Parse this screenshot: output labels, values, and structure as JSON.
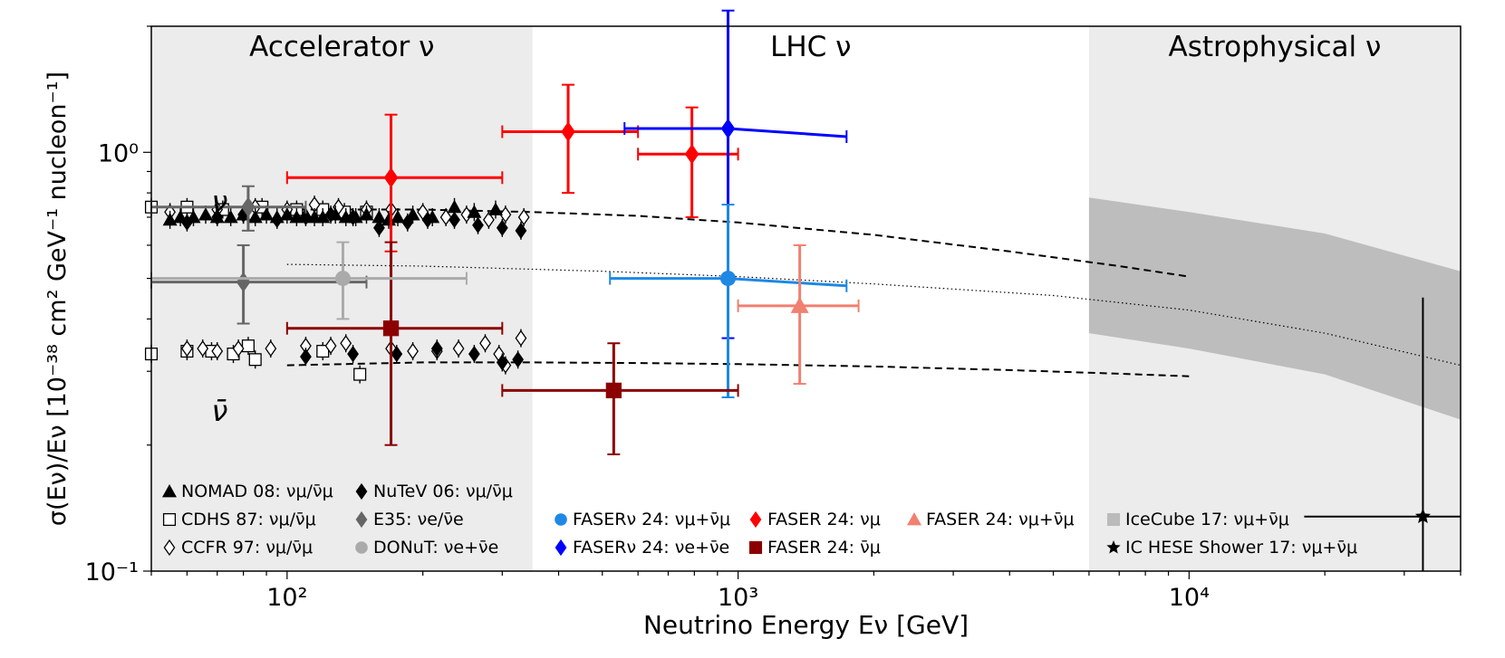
{
  "chart_data": {
    "type": "scatter",
    "title": "",
    "xlabel": "Neutrino Energy Eν [GeV]",
    "ylabel": "σ(Eν)/Eν [10⁻³⁸ cm² GeV⁻¹ nucleon⁻¹]",
    "xscale": "log",
    "yscale": "log",
    "xlim": [
      50,
      40000
    ],
    "ylim": [
      0.1,
      2.0
    ],
    "x_ticks": [
      {
        "value": 100,
        "label": "10²"
      },
      {
        "value": 1000,
        "label": "10³"
      },
      {
        "value": 10000,
        "label": "10⁴"
      }
    ],
    "y_ticks": [
      {
        "value": 0.1,
        "label": "10⁻¹"
      },
      {
        "value": 1.0,
        "label": "10⁰"
      }
    ],
    "regions": [
      {
        "name": "accelerator",
        "label": "Accelerator ν",
        "x_from": 50,
        "x_to": 350,
        "shaded": true
      },
      {
        "name": "lhc",
        "label": "LHC ν",
        "x_from": 350,
        "x_to": 6000,
        "shaded": false
      },
      {
        "name": "astro",
        "label": "Astrophysical ν",
        "x_from": 6000,
        "x_to": 40000,
        "shaded": true
      }
    ],
    "annotations": [
      {
        "name": "nu-label",
        "text": "ν",
        "x": 68,
        "y": 0.76
      },
      {
        "name": "nubar-label",
        "text": "ν̄",
        "x": 68,
        "y": 0.24
      }
    ],
    "curves": [
      {
        "name": "nu-dashed",
        "style": "dashed",
        "x": [
          100,
          200,
          350,
          600,
          1000,
          2000,
          4000,
          7000,
          10000
        ],
        "y": [
          0.73,
          0.73,
          0.72,
          0.705,
          0.68,
          0.635,
          0.58,
          0.535,
          0.505
        ]
      },
      {
        "name": "nubar-dashed",
        "style": "dashed",
        "x": [
          100,
          200,
          350,
          600,
          1000,
          2000,
          4000,
          7000,
          10000
        ],
        "y": [
          0.31,
          0.315,
          0.315,
          0.314,
          0.312,
          0.308,
          0.302,
          0.296,
          0.292
        ]
      },
      {
        "name": "average-dotted",
        "style": "dotted",
        "x": [
          100,
          200,
          500,
          1000,
          2000,
          5000,
          10000,
          20000,
          40000
        ],
        "y": [
          0.54,
          0.535,
          0.52,
          0.505,
          0.485,
          0.455,
          0.42,
          0.37,
          0.31
        ]
      }
    ],
    "band": {
      "name": "icecube-band",
      "x": [
        6000,
        10000,
        20000,
        40000
      ],
      "y_low": [
        0.37,
        0.34,
        0.295,
        0.23
      ],
      "y_high": [
        0.78,
        0.72,
        0.64,
        0.52
      ]
    },
    "nomad_nu": {
      "x": [
        55,
        58,
        62,
        66,
        70,
        75,
        80,
        85,
        90,
        95,
        100,
        105,
        110,
        115,
        120,
        128,
        135,
        142,
        150,
        160,
        168,
        176,
        190,
        210,
        235,
        260,
        290
      ],
      "y": [
        0.69,
        0.7,
        0.7,
        0.71,
        0.7,
        0.7,
        0.71,
        0.7,
        0.71,
        0.7,
        0.71,
        0.7,
        0.71,
        0.7,
        0.7,
        0.71,
        0.7,
        0.7,
        0.71,
        0.7,
        0.69,
        0.7,
        0.71,
        0.7,
        0.74,
        0.72,
        0.73
      ]
    },
    "nutev_nu": {
      "x": [
        60,
        70,
        80,
        95,
        110,
        125,
        140,
        160,
        185,
        205,
        235,
        265,
        300,
        330
      ],
      "y": [
        0.68,
        0.7,
        0.71,
        0.69,
        0.7,
        0.71,
        0.7,
        0.66,
        0.68,
        0.69,
        0.69,
        0.67,
        0.66,
        0.65
      ]
    },
    "cdhs_nu": {
      "x": [
        50,
        60,
        72,
        88,
        105,
        120,
        134,
        150
      ],
      "y": [
        0.74,
        0.74,
        0.73,
        0.74,
        0.73,
        0.73,
        0.72,
        0.72
      ]
    },
    "ccfr_nu": {
      "x": [
        55,
        70,
        85,
        100,
        115,
        130,
        150,
        170,
        200,
        225,
        250,
        280,
        305,
        335
      ],
      "y": [
        0.72,
        0.73,
        0.74,
        0.73,
        0.75,
        0.74,
        0.73,
        0.73,
        0.72,
        0.7,
        0.71,
        0.69,
        0.71,
        0.7
      ]
    },
    "nomad_nubar": {
      "x": [],
      "y": []
    },
    "nutev_nubar": {
      "x": [
        110,
        140,
        175,
        215,
        260,
        300,
        325
      ],
      "y": [
        0.325,
        0.33,
        0.33,
        0.34,
        0.33,
        0.315,
        0.32
      ]
    },
    "cdhs_nubar": {
      "x": [
        50,
        60,
        68,
        76,
        82,
        85,
        120,
        145
      ],
      "y": [
        0.33,
        0.335,
        0.335,
        0.33,
        0.345,
        0.32,
        0.335,
        0.295
      ]
    },
    "ccfr_nubar": {
      "x": [
        60,
        65,
        70,
        78,
        92,
        110,
        125,
        135,
        170,
        190,
        215,
        240,
        275,
        295,
        305,
        330
      ],
      "y": [
        0.34,
        0.34,
        0.335,
        0.34,
        0.34,
        0.345,
        0.345,
        0.35,
        0.34,
        0.335,
        0.335,
        0.34,
        0.35,
        0.33,
        0.31,
        0.36
      ]
    },
    "errorbar_points": [
      {
        "name": "faser24-numu-1",
        "marker": "diamond",
        "color": "#ff0000",
        "x": 170,
        "y": 0.87,
        "xlo": 100,
        "xhi": 300,
        "ylo": 0.58,
        "yhi": 1.23
      },
      {
        "name": "faser24-numu-2",
        "marker": "diamond",
        "color": "#ff0000",
        "x": 420,
        "y": 1.12,
        "xlo": 300,
        "xhi": 600,
        "ylo": 0.8,
        "yhi": 1.45
      },
      {
        "name": "faser24-numu-3",
        "marker": "diamond",
        "color": "#ff0000",
        "x": 790,
        "y": 0.99,
        "xlo": 600,
        "xhi": 1000,
        "ylo": 0.7,
        "yhi": 1.28
      },
      {
        "name": "fasernu24-nue",
        "marker": "diamond",
        "color": "#0000ff",
        "x": 950,
        "y": 1.14,
        "xlo": 560,
        "xhi": 1740,
        "ylo": 0.36,
        "yhi": 2.18,
        "x_right_y": 1.09
      },
      {
        "name": "fasernu24-numu",
        "marker": "circle",
        "color": "#1e88e5",
        "x": 950,
        "y": 0.5,
        "xlo": 520,
        "xhi": 1740,
        "ylo": 0.26,
        "yhi": 0.75,
        "x_right_y": 0.48
      },
      {
        "name": "faser24-numu-sum",
        "marker": "triangle",
        "color": "#f08070",
        "x": 1370,
        "y": 0.43,
        "xlo": 1000,
        "xhi": 1850,
        "ylo": 0.28,
        "yhi": 0.6
      },
      {
        "name": "faser24-numubar-1",
        "marker": "square",
        "color": "#8b0000",
        "x": 170,
        "y": 0.38,
        "xlo": 100,
        "xhi": 300,
        "ylo": 0.2,
        "yhi": 0.61
      },
      {
        "name": "faser24-numubar-2",
        "marker": "square",
        "color": "#8b0000",
        "x": 530,
        "y": 0.27,
        "xlo": 300,
        "xhi": 1000,
        "ylo": 0.19,
        "yhi": 0.35
      },
      {
        "name": "e35-nu",
        "marker": "diamond",
        "color": "#666666",
        "x": 82,
        "y": 0.74,
        "xlo": 50,
        "xhi": 110,
        "ylo": 0.65,
        "yhi": 0.83
      },
      {
        "name": "e35-mid",
        "marker": "diamond",
        "color": "#666666",
        "x": 80,
        "y": 0.49,
        "xlo": 50,
        "xhi": 150,
        "ylo": 0.39,
        "yhi": 0.6
      },
      {
        "name": "donut",
        "marker": "circle",
        "color": "#aaaaaa",
        "x": 133,
        "y": 0.5,
        "xlo": 50,
        "xhi": 250,
        "ylo": 0.4,
        "yhi": 0.61
      },
      {
        "name": "ic-hese-shower",
        "marker": "star",
        "color": "#000000",
        "x": 33000,
        "y": 0.135,
        "xlo": 18000,
        "xhi": 40000,
        "ylo": 0.1,
        "yhi": 0.45
      }
    ],
    "legend": [
      {
        "name": "nomad",
        "marker": "triangle",
        "color": "#000000",
        "label": "NOMAD 08: νμ/ν̄μ"
      },
      {
        "name": "cdhs",
        "marker": "square-open",
        "color": "#000000",
        "label": "CDHS 87: νμ/ν̄μ"
      },
      {
        "name": "ccfr",
        "marker": "diamond-open",
        "color": "#000000",
        "label": "CCFR 97: νμ/ν̄μ"
      },
      {
        "name": "nutev",
        "marker": "diamond",
        "color": "#000000",
        "label": "NuTeV 06: νμ/ν̄μ"
      },
      {
        "name": "e35",
        "marker": "diamond",
        "color": "#666666",
        "label": "E35: νe/ν̄e"
      },
      {
        "name": "donut",
        "marker": "circle",
        "color": "#aaaaaa",
        "label": "DONuT: νe+ν̄e"
      },
      {
        "name": "fasernu-numu",
        "marker": "circle",
        "color": "#1e88e5",
        "label": "FASERν 24: νμ+ν̄μ"
      },
      {
        "name": "fasernu-nue",
        "marker": "diamond",
        "color": "#0000ff",
        "label": "FASERν 24: νe+ν̄e"
      },
      {
        "name": "faser-numu",
        "marker": "diamond",
        "color": "#ff0000",
        "label": "FASER 24: νμ"
      },
      {
        "name": "faser-numubar",
        "marker": "square",
        "color": "#8b0000",
        "label": "FASER 24: ν̄μ"
      },
      {
        "name": "faser-sum",
        "marker": "triangle",
        "color": "#f08070",
        "label": "FASER 24: νμ+ν̄μ"
      },
      {
        "name": "icecube",
        "marker": "square",
        "color": "#bbbbbb",
        "label": "IceCube 17: νμ+ν̄μ"
      },
      {
        "name": "ic-hese",
        "marker": "star",
        "color": "#000000",
        "label": "IC HESE Shower 17: νμ+ν̄μ"
      }
    ]
  }
}
